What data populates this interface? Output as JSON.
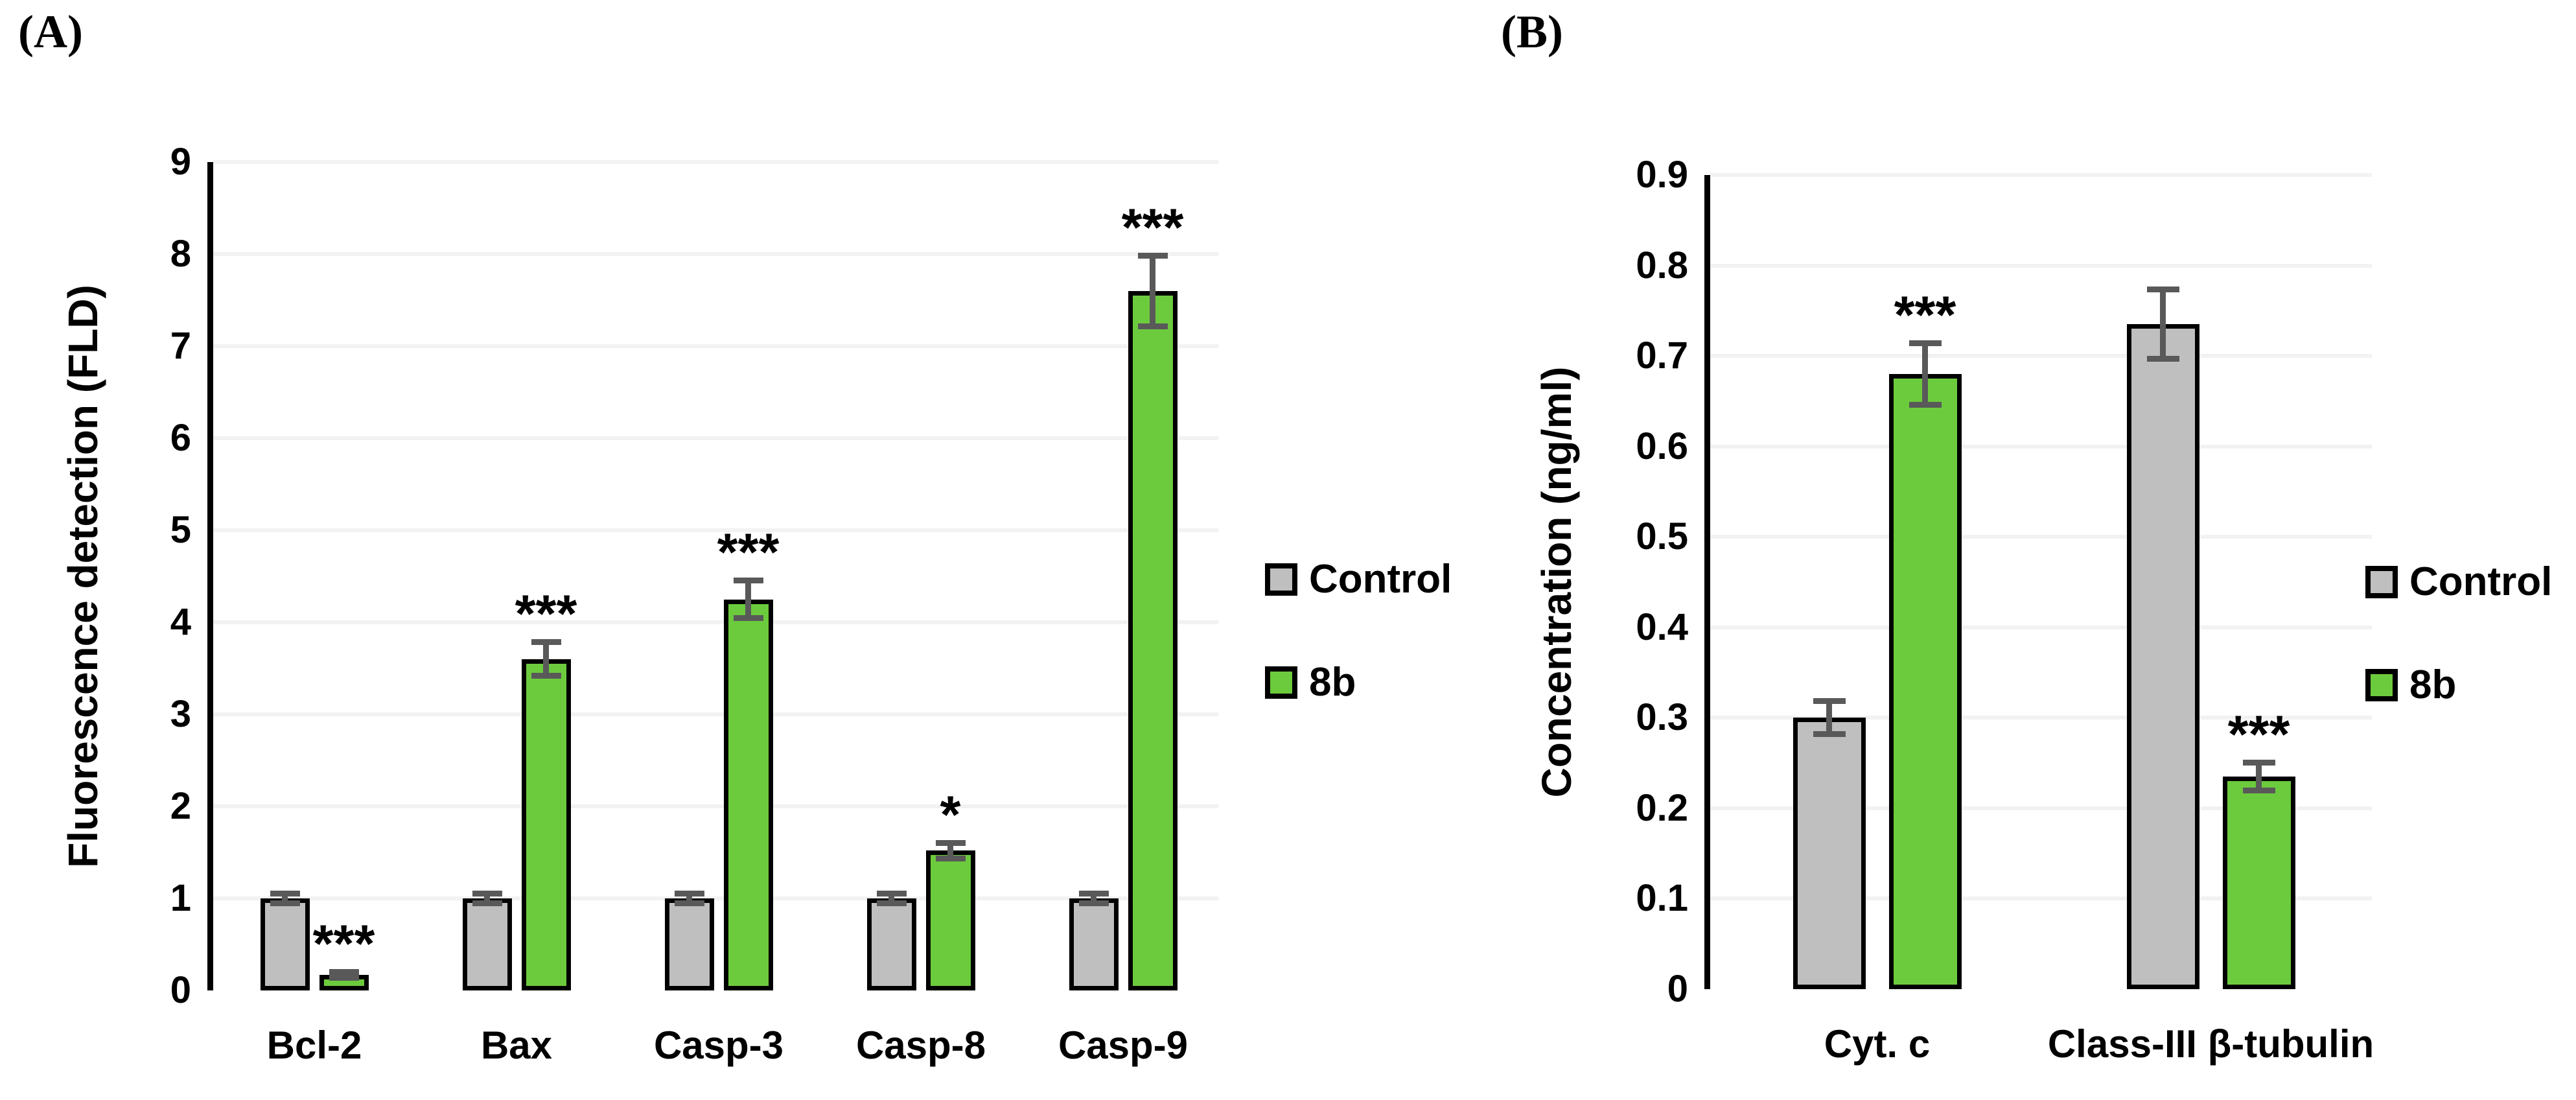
{
  "figure": {
    "background": "#ffffff",
    "panels": [
      {
        "label": "(A)"
      },
      {
        "label": "(B)"
      }
    ]
  },
  "colors": {
    "control_fill": "#BFBFBF",
    "treatment_fill": "#6CCB3D",
    "bar_border": "#000000",
    "error_bar": "#595959",
    "axis": "#000000",
    "gridline": "#F2F2F2"
  },
  "chart_data": [
    {
      "type": "bar",
      "title": "",
      "xlabel": "",
      "ylabel": "Fluorescence detection (FLD)",
      "categories": [
        "Bcl-2",
        "Bax",
        "Casp-3",
        "Casp-8",
        "Casp-9"
      ],
      "ylim": [
        0,
        9
      ],
      "ytick_step": 1,
      "yticks": [
        "0",
        "1",
        "2",
        "3",
        "4",
        "5",
        "6",
        "7",
        "8",
        "9"
      ],
      "grid": true,
      "legend_position": "right",
      "series": [
        {
          "name": "Control",
          "color": "#BFBFBF",
          "values": [
            1.0,
            1.0,
            1.0,
            1.0,
            1.0
          ],
          "errors": [
            0.05,
            0.05,
            0.05,
            0.05,
            0.05
          ],
          "sig": [
            "",
            "",
            "",
            "",
            ""
          ]
        },
        {
          "name": "8b",
          "color": "#6CCB3D",
          "values": [
            0.17,
            3.6,
            4.25,
            1.52,
            7.6
          ],
          "errors": [
            0.03,
            0.18,
            0.2,
            0.08,
            0.38
          ],
          "sig": [
            "***",
            "***",
            "***",
            "*",
            "***"
          ]
        }
      ]
    },
    {
      "type": "bar",
      "title": "",
      "xlabel": "",
      "ylabel": "Concentration (ng/ml)",
      "categories": [
        "Cyt. c",
        "Class-III β-tubulin"
      ],
      "ylim": [
        0,
        0.9
      ],
      "ytick_step": 0.1,
      "yticks": [
        "0",
        "0.1",
        "0.2",
        "0.3",
        "0.4",
        "0.5",
        "0.6",
        "0.7",
        "0.8",
        "0.9"
      ],
      "grid": true,
      "legend_position": "right",
      "series": [
        {
          "name": "Control",
          "color": "#BFBFBF",
          "values": [
            0.3,
            0.735
          ],
          "errors": [
            0.018,
            0.038
          ],
          "sig": [
            "",
            ""
          ]
        },
        {
          "name": "8b",
          "color": "#6CCB3D",
          "values": [
            0.68,
            0.235
          ],
          "errors": [
            0.034,
            0.015
          ],
          "sig": [
            "***",
            "***"
          ]
        }
      ]
    }
  ]
}
